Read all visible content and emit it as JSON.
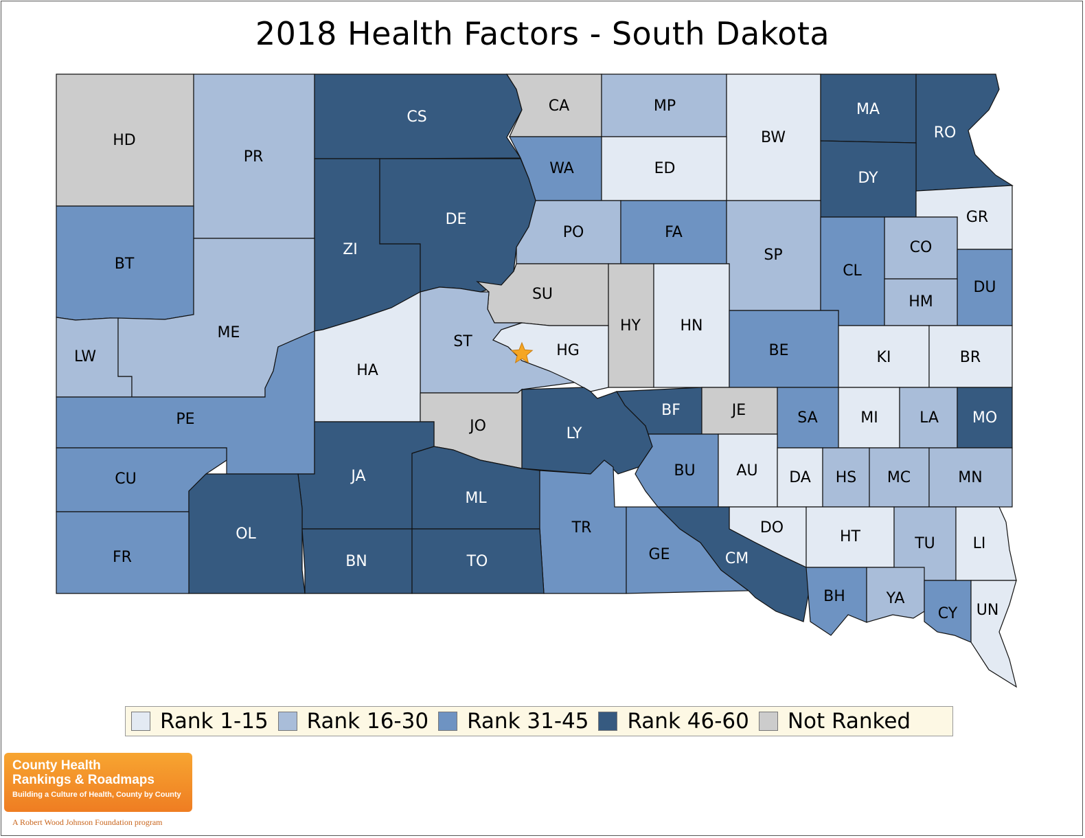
{
  "title": "2018 Health Factors - South Dakota",
  "colors": {
    "rank_1_15": "#e3eaf3",
    "rank_16_30": "#a9bdd9",
    "rank_31_45": "#6e93c2",
    "rank_46_60": "#365a80",
    "not_ranked": "#cccccc",
    "star": "#f5a623"
  },
  "legend": [
    {
      "label": "Rank 1-15",
      "color_key": "rank_1_15"
    },
    {
      "label": "Rank 16-30",
      "color_key": "rank_16_30"
    },
    {
      "label": "Rank 31-45",
      "color_key": "rank_31_45"
    },
    {
      "label": "Rank 46-60",
      "color_key": "rank_46_60"
    },
    {
      "label": "Not Ranked",
      "color_key": "not_ranked"
    }
  ],
  "counties": [
    {
      "abbr": "HD",
      "tier": "not_ranked"
    },
    {
      "abbr": "PR",
      "tier": "rank_16_30"
    },
    {
      "abbr": "CS",
      "tier": "rank_46_60"
    },
    {
      "abbr": "CA",
      "tier": "not_ranked"
    },
    {
      "abbr": "MP",
      "tier": "rank_16_30"
    },
    {
      "abbr": "BW",
      "tier": "rank_1_15"
    },
    {
      "abbr": "MA",
      "tier": "rank_46_60"
    },
    {
      "abbr": "RO",
      "tier": "rank_46_60"
    },
    {
      "abbr": "WA",
      "tier": "rank_31_45"
    },
    {
      "abbr": "ED",
      "tier": "rank_1_15"
    },
    {
      "abbr": "DY",
      "tier": "rank_46_60"
    },
    {
      "abbr": "BT",
      "tier": "rank_31_45"
    },
    {
      "abbr": "ZI",
      "tier": "rank_46_60"
    },
    {
      "abbr": "DE",
      "tier": "rank_46_60"
    },
    {
      "abbr": "PO",
      "tier": "rank_16_30"
    },
    {
      "abbr": "FA",
      "tier": "rank_31_45"
    },
    {
      "abbr": "SP",
      "tier": "rank_16_30"
    },
    {
      "abbr": "GR",
      "tier": "rank_1_15"
    },
    {
      "abbr": "CO",
      "tier": "rank_16_30"
    },
    {
      "abbr": "CL",
      "tier": "rank_31_45"
    },
    {
      "abbr": "DU",
      "tier": "rank_31_45"
    },
    {
      "abbr": "HM",
      "tier": "rank_16_30"
    },
    {
      "abbr": "SU",
      "tier": "not_ranked"
    },
    {
      "abbr": "HY",
      "tier": "not_ranked"
    },
    {
      "abbr": "HN",
      "tier": "rank_1_15"
    },
    {
      "abbr": "LW",
      "tier": "rank_16_30"
    },
    {
      "abbr": "ME",
      "tier": "rank_16_30"
    },
    {
      "abbr": "ST",
      "tier": "rank_16_30"
    },
    {
      "abbr": "HG",
      "tier": "rank_1_15"
    },
    {
      "abbr": "HA",
      "tier": "rank_1_15"
    },
    {
      "abbr": "BE",
      "tier": "rank_31_45"
    },
    {
      "abbr": "KI",
      "tier": "rank_1_15"
    },
    {
      "abbr": "BR",
      "tier": "rank_1_15"
    },
    {
      "abbr": "PE",
      "tier": "rank_31_45"
    },
    {
      "abbr": "JO",
      "tier": "not_ranked"
    },
    {
      "abbr": "LY",
      "tier": "rank_46_60"
    },
    {
      "abbr": "BF",
      "tier": "rank_46_60"
    },
    {
      "abbr": "JE",
      "tier": "not_ranked"
    },
    {
      "abbr": "SA",
      "tier": "rank_31_45"
    },
    {
      "abbr": "MI",
      "tier": "rank_1_15"
    },
    {
      "abbr": "LA",
      "tier": "rank_16_30"
    },
    {
      "abbr": "MO",
      "tier": "rank_46_60"
    },
    {
      "abbr": "CU",
      "tier": "rank_31_45"
    },
    {
      "abbr": "JA",
      "tier": "rank_46_60"
    },
    {
      "abbr": "ML",
      "tier": "rank_46_60"
    },
    {
      "abbr": "BU",
      "tier": "rank_31_45"
    },
    {
      "abbr": "AU",
      "tier": "rank_1_15"
    },
    {
      "abbr": "DA",
      "tier": "rank_1_15"
    },
    {
      "abbr": "HS",
      "tier": "rank_16_30"
    },
    {
      "abbr": "MC",
      "tier": "rank_16_30"
    },
    {
      "abbr": "MN",
      "tier": "rank_16_30"
    },
    {
      "abbr": "OL",
      "tier": "rank_46_60"
    },
    {
      "abbr": "TR",
      "tier": "rank_31_45"
    },
    {
      "abbr": "DO",
      "tier": "rank_1_15"
    },
    {
      "abbr": "HT",
      "tier": "rank_1_15"
    },
    {
      "abbr": "TU",
      "tier": "rank_16_30"
    },
    {
      "abbr": "LI",
      "tier": "rank_1_15"
    },
    {
      "abbr": "FR",
      "tier": "rank_31_45"
    },
    {
      "abbr": "BN",
      "tier": "rank_46_60"
    },
    {
      "abbr": "TO",
      "tier": "rank_46_60"
    },
    {
      "abbr": "GE",
      "tier": "rank_31_45"
    },
    {
      "abbr": "CM",
      "tier": "rank_46_60"
    },
    {
      "abbr": "BH",
      "tier": "rank_31_45"
    },
    {
      "abbr": "YA",
      "tier": "rank_16_30"
    },
    {
      "abbr": "CY",
      "tier": "rank_31_45"
    },
    {
      "abbr": "UN",
      "tier": "rank_1_15"
    }
  ],
  "capital_marker": "star-icon",
  "logo": {
    "line1": "County Health",
    "line2": "Rankings & Roadmaps",
    "tagline": "Building a Culture of Health, County by County",
    "program": "A Robert Wood Johnson Foundation program"
  }
}
